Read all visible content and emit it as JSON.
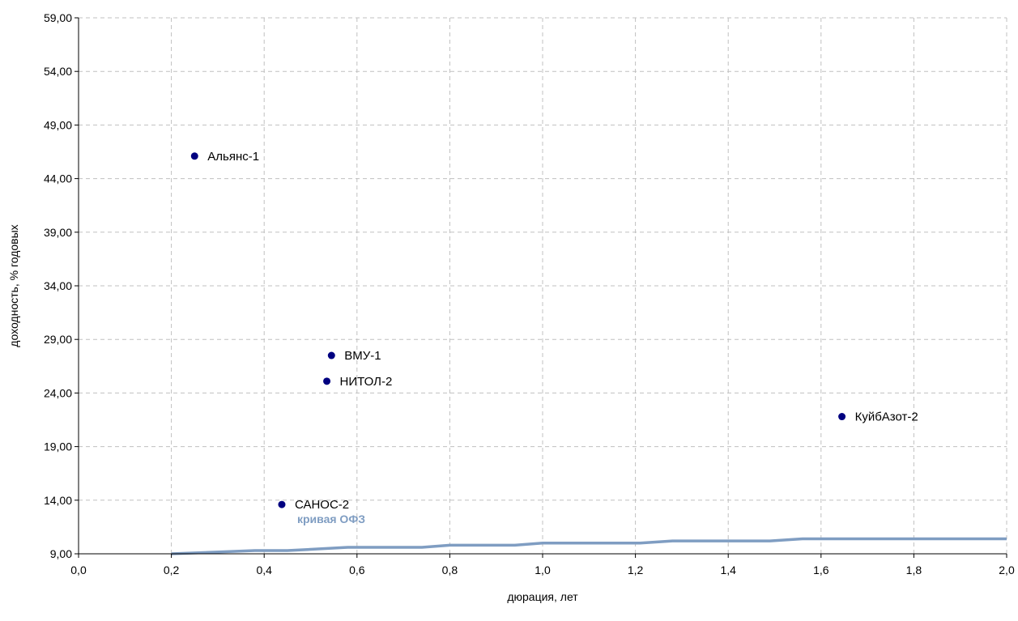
{
  "chart_data": {
    "type": "scatter",
    "xlabel": "дюрация, лет",
    "ylabel": "доходность, % годовых",
    "xlim": [
      0,
      2
    ],
    "ylim": [
      9,
      59
    ],
    "x_ticks": [
      "0,0",
      "0,2",
      "0,4",
      "0,6",
      "0,8",
      "1,0",
      "1,2",
      "1,4",
      "1,6",
      "1,8",
      "2,0"
    ],
    "y_ticks": [
      "9,00",
      "14,00",
      "19,00",
      "24,00",
      "29,00",
      "34,00",
      "39,00",
      "44,00",
      "49,00",
      "54,00",
      "59,00"
    ],
    "grid": true,
    "points": [
      {
        "label": "Альянс-1",
        "x": 0.25,
        "y": 46.1
      },
      {
        "label": "ВМУ-1",
        "x": 0.545,
        "y": 27.5
      },
      {
        "label": "НИТОЛ-2",
        "x": 0.535,
        "y": 25.1
      },
      {
        "label": "КуйбАзот-2",
        "x": 1.645,
        "y": 21.8
      },
      {
        "label": "САНОС-2",
        "x": 0.438,
        "y": 13.6
      }
    ],
    "curve": {
      "name": "кривая ОФЗ",
      "x": [
        0.2,
        0.38,
        0.45,
        0.58,
        0.74,
        0.8,
        0.94,
        1.0,
        1.21,
        1.28,
        1.49,
        1.56,
        2.0
      ],
      "y": [
        9.0,
        9.3,
        9.3,
        9.6,
        9.6,
        9.8,
        9.8,
        10.0,
        10.0,
        10.2,
        10.2,
        10.4,
        10.4
      ]
    },
    "colors": {
      "points": "#000080",
      "curve": "#7f9dc2",
      "grid": "#c0c0c0"
    }
  }
}
